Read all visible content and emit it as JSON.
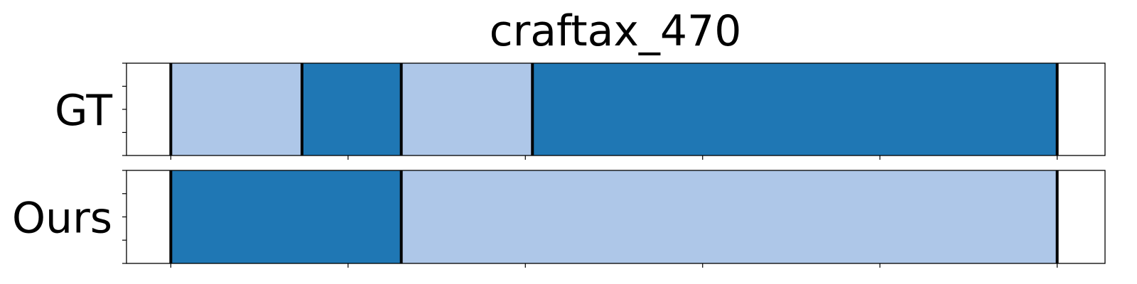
{
  "chart_data": {
    "type": "bar",
    "orientation": "horizontal-segments",
    "title": "craftax_470",
    "xlabel": "",
    "ylabel": "",
    "xlim": [
      -25,
      527
    ],
    "x_ticks": [
      0,
      100,
      200,
      300,
      400,
      500
    ],
    "show_tick_labels": false,
    "grid": false,
    "legend": "none",
    "colors": {
      "light": "#aec7e8",
      "dark": "#1f77b4",
      "boundary": "#000000"
    },
    "rows": [
      {
        "label": "GT",
        "segments": [
          {
            "start": 0,
            "end": 74,
            "class": "light"
          },
          {
            "start": 74,
            "end": 130,
            "class": "dark"
          },
          {
            "start": 130,
            "end": 204,
            "class": "light"
          },
          {
            "start": 204,
            "end": 500,
            "class": "dark"
          }
        ]
      },
      {
        "label": "Ours",
        "segments": [
          {
            "start": 0,
            "end": 130,
            "class": "dark"
          },
          {
            "start": 130,
            "end": 500,
            "class": "light"
          }
        ]
      }
    ]
  }
}
